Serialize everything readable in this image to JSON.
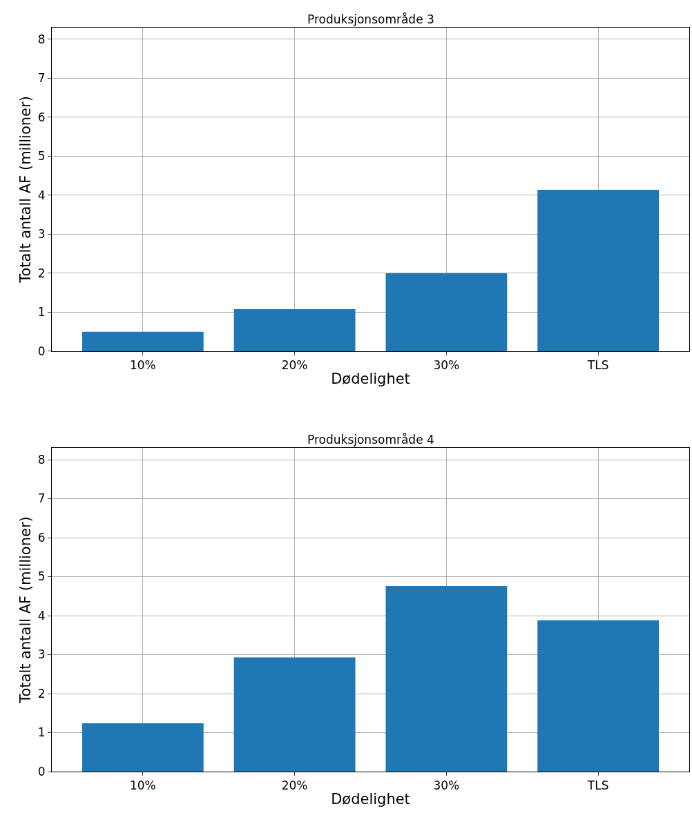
{
  "chart_data": [
    {
      "type": "bar",
      "title": "Produksjonsområde 3",
      "xlabel": "Dødelighet",
      "ylabel": "Totalt antall AF (millioner)",
      "categories": [
        "10%",
        "20%",
        "30%",
        "TLS"
      ],
      "values": [
        0.5,
        1.08,
        2.0,
        4.14
      ],
      "color": "#1f77b4",
      "ylim": [
        0,
        8.3
      ],
      "yticks": [
        0,
        1,
        2,
        3,
        4,
        5,
        6,
        7,
        8
      ],
      "grid": true
    },
    {
      "type": "bar",
      "title": "Produksjonsområde 4",
      "xlabel": "Dødelighet",
      "ylabel": "Totalt antall AF (millioner)",
      "categories": [
        "10%",
        "20%",
        "30%",
        "TLS"
      ],
      "values": [
        1.24,
        2.93,
        4.76,
        3.88
      ],
      "color": "#1f77b4",
      "ylim": [
        0,
        8.3
      ],
      "yticks": [
        0,
        1,
        2,
        3,
        4,
        5,
        6,
        7,
        8
      ],
      "grid": true
    }
  ]
}
